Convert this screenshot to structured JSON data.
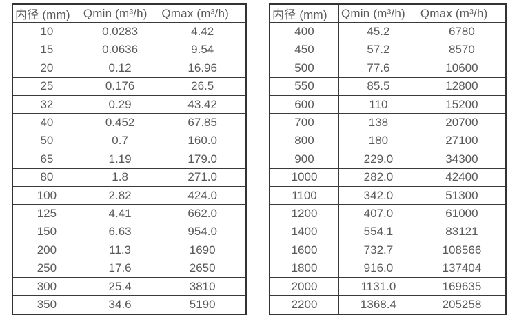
{
  "left_table": {
    "columns": [
      "内径 (mm)",
      "Qmin (m³/h)",
      "Qmax (m³/h)"
    ],
    "rows": [
      [
        "10",
        "0.0283",
        "4.42"
      ],
      [
        "15",
        "0.0636",
        "9.54"
      ],
      [
        "20",
        "0.12",
        "16.96"
      ],
      [
        "25",
        "0.176",
        "26.5"
      ],
      [
        "32",
        "0.29",
        "43.42"
      ],
      [
        "40",
        "0.452",
        "67.85"
      ],
      [
        "50",
        "0.7",
        "160.0"
      ],
      [
        "65",
        "1.19",
        "179.0"
      ],
      [
        "80",
        "1.8",
        "271.0"
      ],
      [
        "100",
        "2.82",
        "424.0"
      ],
      [
        "125",
        "4.41",
        "662.0"
      ],
      [
        "150",
        "6.63",
        "954.0"
      ],
      [
        "200",
        "11.3",
        "1690"
      ],
      [
        "250",
        "17.6",
        "2650"
      ],
      [
        "300",
        "25.4",
        "3810"
      ],
      [
        "350",
        "34.6",
        "5190"
      ]
    ]
  },
  "right_table": {
    "columns": [
      "内径 (mm)",
      "Qmin (m³/h)",
      "Qmax (m³/h)"
    ],
    "rows": [
      [
        "400",
        "45.2",
        "6780"
      ],
      [
        "450",
        "57.2",
        "8570"
      ],
      [
        "500",
        "77.6",
        "10600"
      ],
      [
        "550",
        "85.5",
        "12800"
      ],
      [
        "600",
        "110",
        "15200"
      ],
      [
        "700",
        "138",
        "20700"
      ],
      [
        "800",
        "180",
        "27100"
      ],
      [
        "900",
        "229.0",
        "34300"
      ],
      [
        "1000",
        "282.0",
        "42400"
      ],
      [
        "1100",
        "342.0",
        "51300"
      ],
      [
        "1200",
        "407.0",
        "61000"
      ],
      [
        "1400",
        "554.1",
        "83121"
      ],
      [
        "1600",
        "732.7",
        "108566"
      ],
      [
        "1800",
        "916.0",
        "137404"
      ],
      [
        "2000",
        "1131.0",
        "169635"
      ],
      [
        "2200",
        "1368.4",
        "205258"
      ]
    ]
  },
  "colors": {
    "border": "#3a3a3a",
    "text": "#595959",
    "background": "#ffffff"
  }
}
